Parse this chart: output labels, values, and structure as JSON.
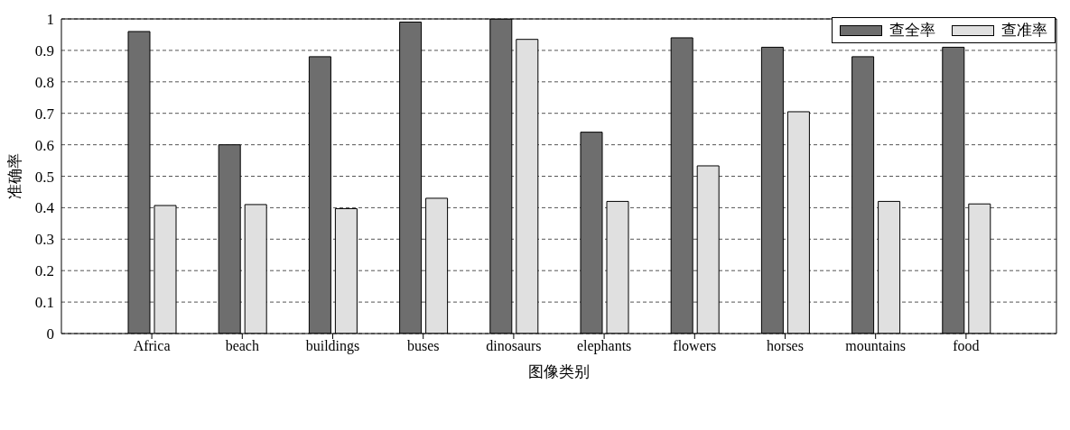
{
  "chart_data": {
    "type": "bar",
    "xlabel": "图像类别",
    "ylabel": "准确率",
    "categories": [
      "Africa",
      "beach",
      "buildings",
      "buses",
      "dinosaurs",
      "elephants",
      "flowers",
      "horses",
      "mountains",
      "food"
    ],
    "series": [
      {
        "name": "查全率",
        "color": "#6e6e6e",
        "values": [
          0.96,
          0.6,
          0.88,
          0.99,
          1.0,
          0.64,
          0.94,
          0.91,
          0.88,
          0.91
        ]
      },
      {
        "name": "查准率",
        "color": "#e0e0e0",
        "values": [
          0.407,
          0.41,
          0.397,
          0.43,
          0.935,
          0.42,
          0.533,
          0.705,
          0.42,
          0.412
        ]
      }
    ],
    "ylim": [
      0,
      1
    ],
    "yticks": [
      0,
      0.1,
      0.2,
      0.3,
      0.4,
      0.5,
      0.6,
      0.7,
      0.8,
      0.9,
      1
    ],
    "grid": "y",
    "legend": "top right"
  }
}
